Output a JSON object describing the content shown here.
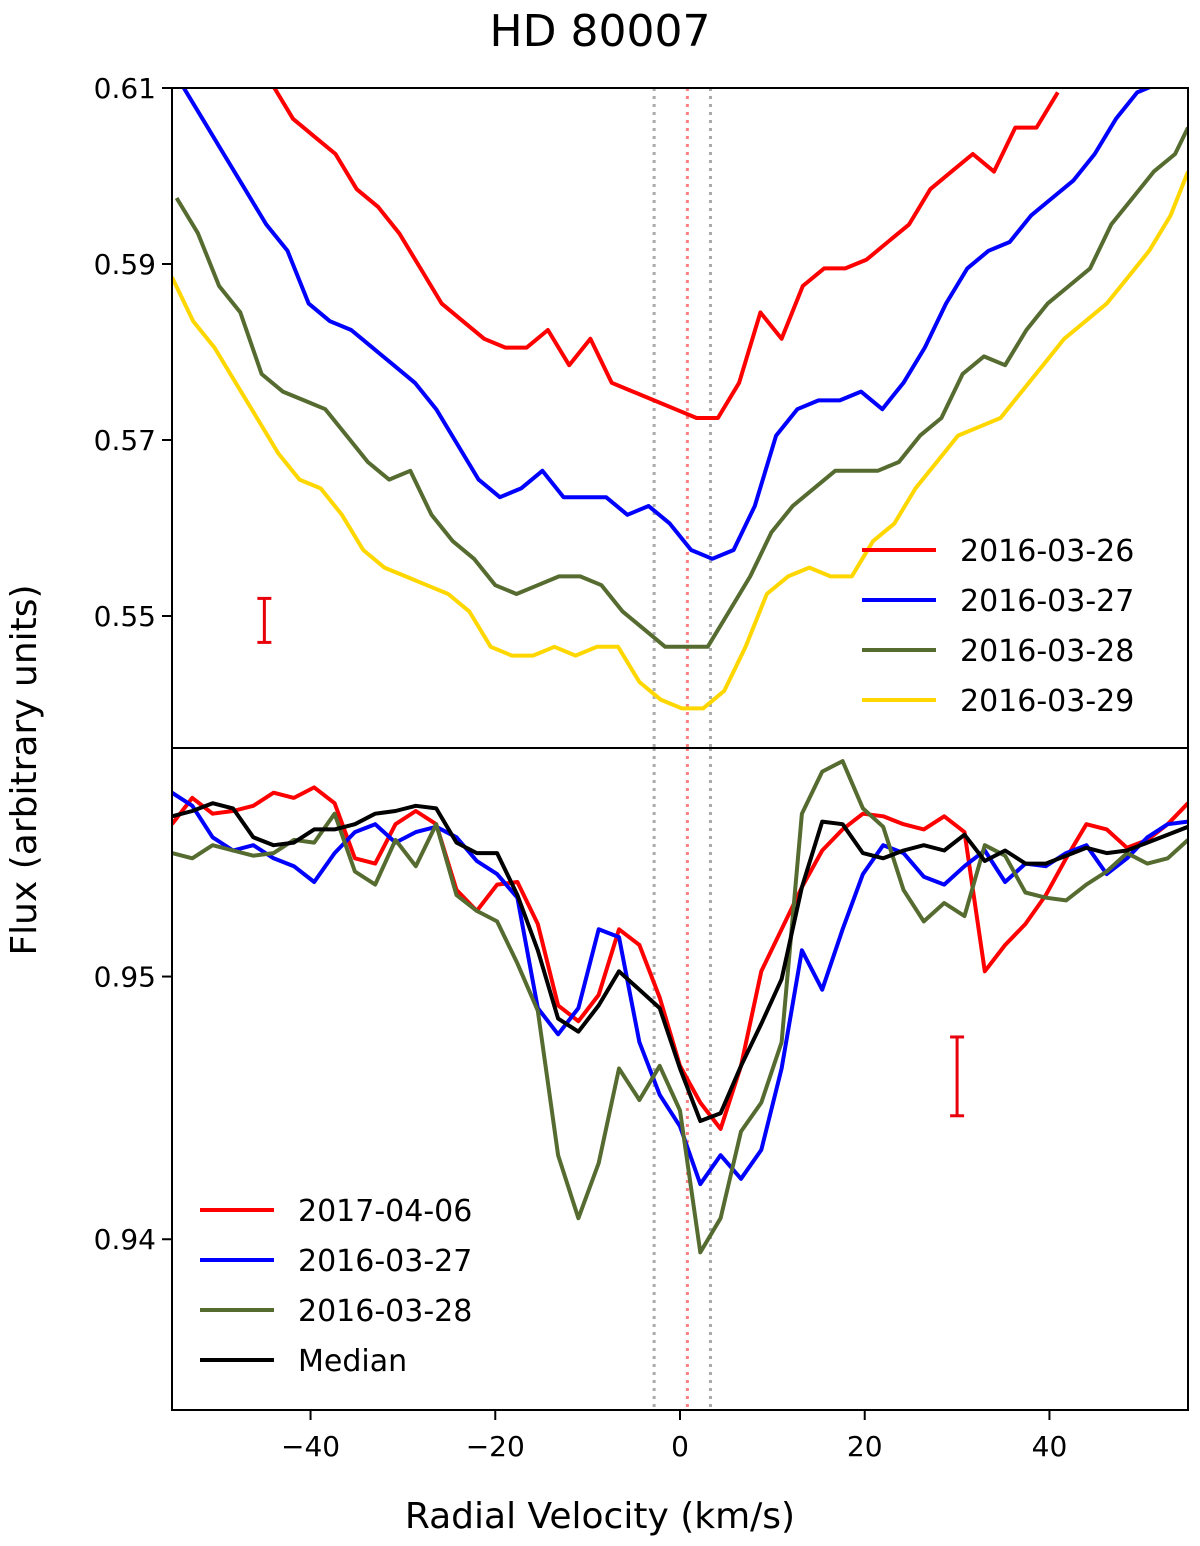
{
  "title": "HD 80007",
  "xlabel": "Radial Velocity (km/s)",
  "ylabel": "Flux (arbitrary units)",
  "chart_data": [
    {
      "type": "line",
      "panel": "top",
      "xlim": [
        -55,
        55
      ],
      "ylim": [
        0.535,
        0.61
      ],
      "yticks": [
        0.55,
        0.57,
        0.59,
        0.61
      ],
      "yticklabels": [
        "0.55",
        "0.57",
        "0.59",
        "0.61"
      ],
      "legend_position": "lower-right",
      "vlines": [
        {
          "x": -2.8,
          "color": "#aaaaaa"
        },
        {
          "x": 0.8,
          "color": "#ff8080"
        },
        {
          "x": 3.3,
          "color": "#aaaaaa"
        }
      ],
      "error_bar": {
        "x": -45,
        "y": 0.5495,
        "err": 0.0025,
        "color": "#e8000b"
      },
      "series": [
        {
          "name": "2016-03-26",
          "color": "#ff0000",
          "x": [
            -44.2,
            -41.9,
            -39.6,
            -37.3,
            -35.0,
            -32.7,
            -30.4,
            -28.1,
            -25.8,
            -23.5,
            -21.2,
            -18.9,
            -16.6,
            -14.3,
            -12.0,
            -9.7,
            -7.4,
            -5.1,
            -2.8,
            -0.5,
            1.8,
            4.1,
            6.4,
            8.7,
            11.0,
            13.3,
            15.6,
            17.9,
            20.2,
            22.5,
            24.8,
            27.1,
            29.4,
            31.7,
            34.0,
            36.3,
            38.6,
            40.9
          ],
          "values": [
            0.6105,
            0.6065,
            0.6045,
            0.6025,
            0.5985,
            0.5965,
            0.5935,
            0.5895,
            0.5855,
            0.5835,
            0.5815,
            0.5805,
            0.5805,
            0.5825,
            0.5785,
            0.5815,
            0.5765,
            0.5755,
            0.5745,
            0.5735,
            0.5725,
            0.5725,
            0.5765,
            0.5845,
            0.5815,
            0.5875,
            0.5895,
            0.5895,
            0.5905,
            0.5925,
            0.5945,
            0.5985,
            0.6005,
            0.6025,
            0.6005,
            0.6055,
            0.6055,
            0.6095
          ]
        },
        {
          "name": "2016-03-27",
          "color": "#0000ff",
          "x": [
            -54.0,
            -51.7,
            -49.4,
            -47.1,
            -44.8,
            -42.5,
            -40.2,
            -37.9,
            -35.6,
            -33.3,
            -31.0,
            -28.7,
            -26.4,
            -24.1,
            -21.8,
            -19.5,
            -17.2,
            -14.9,
            -12.6,
            -10.3,
            -8.0,
            -5.7,
            -3.4,
            -1.1,
            1.2,
            3.5,
            5.8,
            8.1,
            10.4,
            12.7,
            15.0,
            17.3,
            19.6,
            21.9,
            24.2,
            26.5,
            28.8,
            31.1,
            33.4,
            35.7,
            38.0,
            40.3,
            42.6,
            44.9,
            47.2,
            49.5,
            51.8
          ],
          "values": [
            0.6105,
            0.6065,
            0.6025,
            0.5985,
            0.5945,
            0.5915,
            0.5855,
            0.5835,
            0.5825,
            0.5805,
            0.5785,
            0.5765,
            0.5735,
            0.5695,
            0.5655,
            0.5635,
            0.5645,
            0.5665,
            0.5635,
            0.5635,
            0.5635,
            0.5615,
            0.5625,
            0.5605,
            0.5575,
            0.5565,
            0.5575,
            0.5625,
            0.5705,
            0.5735,
            0.5745,
            0.5745,
            0.5755,
            0.5735,
            0.5765,
            0.5805,
            0.5855,
            0.5895,
            0.5915,
            0.5925,
            0.5955,
            0.5975,
            0.5995,
            0.6025,
            0.6065,
            0.6095,
            0.6105
          ]
        },
        {
          "name": "2016-03-28",
          "color": "#556b2f",
          "x": [
            -54.5,
            -52.2,
            -49.9,
            -47.6,
            -45.3,
            -43.0,
            -40.7,
            -38.4,
            -36.1,
            -33.8,
            -31.5,
            -29.2,
            -26.9,
            -24.6,
            -22.3,
            -20.0,
            -17.7,
            -15.4,
            -13.1,
            -10.8,
            -8.5,
            -6.2,
            -3.9,
            -1.6,
            0.7,
            3.0,
            5.3,
            7.6,
            9.9,
            12.2,
            14.5,
            16.8,
            19.1,
            21.4,
            23.7,
            26.0,
            28.3,
            30.6,
            32.9,
            35.2,
            37.5,
            39.8,
            42.1,
            44.4,
            46.7,
            49.0,
            51.3,
            53.6,
            55.0
          ],
          "values": [
            0.5975,
            0.5935,
            0.5875,
            0.5845,
            0.5775,
            0.5755,
            0.5745,
            0.5735,
            0.5705,
            0.5675,
            0.5655,
            0.5665,
            0.5615,
            0.5585,
            0.5565,
            0.5535,
            0.5525,
            0.5535,
            0.5545,
            0.5545,
            0.5535,
            0.5505,
            0.5485,
            0.5465,
            0.5465,
            0.5465,
            0.5505,
            0.5545,
            0.5595,
            0.5625,
            0.5645,
            0.5665,
            0.5665,
            0.5665,
            0.5675,
            0.5705,
            0.5725,
            0.5775,
            0.5795,
            0.5785,
            0.5825,
            0.5855,
            0.5875,
            0.5895,
            0.5945,
            0.5975,
            0.6005,
            0.6025,
            0.6055
          ]
        },
        {
          "name": "2016-03-29",
          "color": "#ffd700",
          "x": [
            -55.0,
            -52.7,
            -50.4,
            -48.1,
            -45.8,
            -43.5,
            -41.2,
            -38.9,
            -36.6,
            -34.3,
            -32.0,
            -29.7,
            -27.4,
            -25.1,
            -22.8,
            -20.5,
            -18.2,
            -15.9,
            -13.6,
            -11.3,
            -9.0,
            -6.7,
            -4.4,
            -2.1,
            0.2,
            2.5,
            4.8,
            7.1,
            9.4,
            11.7,
            14.0,
            16.3,
            18.6,
            20.9,
            23.2,
            25.5,
            27.8,
            30.1,
            32.4,
            34.7,
            37.0,
            39.3,
            41.6,
            43.9,
            46.2,
            48.5,
            50.8,
            53.1,
            55.0
          ],
          "values": [
            0.5885,
            0.5835,
            0.5805,
            0.5765,
            0.5725,
            0.5685,
            0.5655,
            0.5645,
            0.5615,
            0.5575,
            0.5555,
            0.5545,
            0.5535,
            0.5525,
            0.5505,
            0.5465,
            0.5455,
            0.5455,
            0.5465,
            0.5455,
            0.5465,
            0.5465,
            0.5425,
            0.5405,
            0.5395,
            0.5395,
            0.5415,
            0.5465,
            0.5525,
            0.5545,
            0.5555,
            0.5545,
            0.5545,
            0.5585,
            0.5605,
            0.5645,
            0.5675,
            0.5705,
            0.5715,
            0.5725,
            0.5755,
            0.5785,
            0.5815,
            0.5835,
            0.5855,
            0.5885,
            0.5915,
            0.5955,
            0.6005
          ]
        }
      ]
    },
    {
      "type": "line",
      "panel": "bottom",
      "xlim": [
        -55,
        55
      ],
      "ylim": [
        0.9335,
        0.9587
      ],
      "yticks": [
        0.94,
        0.95
      ],
      "yticklabels": [
        "0.94",
        "0.95"
      ],
      "legend_position": "lower-left",
      "vlines": [
        {
          "x": -2.8,
          "color": "#aaaaaa"
        },
        {
          "x": 0.8,
          "color": "#ff8080"
        },
        {
          "x": 3.3,
          "color": "#aaaaaa"
        }
      ],
      "error_bar": {
        "x": 30,
        "y": 0.9462,
        "err": 0.0015,
        "color": "#e8000b"
      },
      "series": [
        {
          "name": "2017-04-06",
          "color": "#ff0000",
          "x": [
            -55.0,
            -52.8,
            -50.6,
            -48.4,
            -46.2,
            -44.0,
            -41.8,
            -39.6,
            -37.4,
            -35.2,
            -33.0,
            -30.8,
            -28.6,
            -26.4,
            -24.2,
            -22.0,
            -19.8,
            -17.6,
            -15.4,
            -13.2,
            -11.0,
            -8.8,
            -6.6,
            -4.4,
            -2.2,
            0.0,
            2.2,
            4.4,
            6.6,
            8.8,
            11.0,
            13.2,
            15.4,
            17.6,
            19.8,
            22.0,
            24.2,
            26.4,
            28.6,
            30.8,
            33.0,
            35.2,
            37.4,
            39.6,
            41.8,
            44.0,
            46.2,
            48.4,
            50.6,
            52.8,
            55.0
          ],
          "values": [
            0.9558,
            0.9568,
            0.9562,
            0.9563,
            0.9565,
            0.957,
            0.9568,
            0.9572,
            0.9566,
            0.9545,
            0.9543,
            0.9558,
            0.9563,
            0.9558,
            0.9533,
            0.9525,
            0.9535,
            0.9536,
            0.952,
            0.9489,
            0.9483,
            0.9493,
            0.9518,
            0.9512,
            0.9492,
            0.9466,
            0.9452,
            0.9442,
            0.9466,
            0.9502,
            0.9518,
            0.9534,
            0.9548,
            0.9556,
            0.9562,
            0.9561,
            0.9558,
            0.9556,
            0.9561,
            0.9555,
            0.9502,
            0.9512,
            0.952,
            0.9531,
            0.9545,
            0.9558,
            0.9556,
            0.9549,
            0.9552,
            0.9558,
            0.9566
          ]
        },
        {
          "name": "2016-03-27",
          "color": "#0000ff",
          "x": [
            -55.0,
            -52.8,
            -50.6,
            -48.4,
            -46.2,
            -44.0,
            -41.8,
            -39.6,
            -37.4,
            -35.2,
            -33.0,
            -30.8,
            -28.6,
            -26.4,
            -24.2,
            -22.0,
            -19.8,
            -17.6,
            -15.4,
            -13.2,
            -11.0,
            -8.8,
            -6.6,
            -4.4,
            -2.2,
            0.0,
            2.2,
            4.4,
            6.6,
            8.8,
            11.0,
            13.2,
            15.4,
            17.6,
            19.8,
            22.0,
            24.2,
            26.4,
            28.6,
            30.8,
            33.0,
            35.2,
            37.4,
            39.6,
            41.8,
            44.0,
            46.2,
            48.4,
            50.6,
            52.8,
            55.0
          ],
          "values": [
            0.957,
            0.9565,
            0.9553,
            0.9548,
            0.955,
            0.9545,
            0.9542,
            0.9536,
            0.9547,
            0.9555,
            0.9558,
            0.9551,
            0.9555,
            0.9557,
            0.9553,
            0.9544,
            0.9539,
            0.953,
            0.9488,
            0.9478,
            0.9488,
            0.9518,
            0.9515,
            0.9475,
            0.9455,
            0.9443,
            0.9421,
            0.9432,
            0.9423,
            0.9434,
            0.9465,
            0.951,
            0.9495,
            0.9518,
            0.9539,
            0.955,
            0.9547,
            0.9538,
            0.9535,
            0.9542,
            0.9548,
            0.9536,
            0.9543,
            0.9542,
            0.9547,
            0.955,
            0.9539,
            0.9545,
            0.9553,
            0.9558,
            0.9559
          ]
        },
        {
          "name": "2016-03-28",
          "color": "#556b2f",
          "x": [
            -55.0,
            -52.8,
            -50.6,
            -48.4,
            -46.2,
            -44.0,
            -41.8,
            -39.6,
            -37.4,
            -35.2,
            -33.0,
            -30.8,
            -28.6,
            -26.4,
            -24.2,
            -22.0,
            -19.8,
            -17.6,
            -15.4,
            -13.2,
            -11.0,
            -8.8,
            -6.6,
            -4.4,
            -2.2,
            0.0,
            2.2,
            4.4,
            6.6,
            8.8,
            11.0,
            13.2,
            15.4,
            17.6,
            19.8,
            22.0,
            24.2,
            26.4,
            28.6,
            30.8,
            33.0,
            35.2,
            37.4,
            39.6,
            41.8,
            44.0,
            46.2,
            48.4,
            50.6,
            52.8,
            55.0
          ],
          "values": [
            0.9547,
            0.9545,
            0.955,
            0.9548,
            0.9546,
            0.9547,
            0.9552,
            0.9551,
            0.9562,
            0.954,
            0.9535,
            0.9552,
            0.9542,
            0.9558,
            0.9531,
            0.9525,
            0.9521,
            0.9505,
            0.9487,
            0.9432,
            0.9408,
            0.9429,
            0.9465,
            0.9453,
            0.9466,
            0.9449,
            0.9395,
            0.9408,
            0.9441,
            0.9452,
            0.9475,
            0.9562,
            0.9578,
            0.9582,
            0.9564,
            0.9557,
            0.9533,
            0.9521,
            0.9528,
            0.9523,
            0.955,
            0.9546,
            0.9532,
            0.953,
            0.9529,
            0.9535,
            0.954,
            0.9547,
            0.9543,
            0.9545,
            0.9552
          ]
        },
        {
          "name": "Median",
          "color": "#000000",
          "x": [
            -55.0,
            -52.8,
            -50.6,
            -48.4,
            -46.2,
            -44.0,
            -41.8,
            -39.6,
            -37.4,
            -35.2,
            -33.0,
            -30.8,
            -28.6,
            -26.4,
            -24.2,
            -22.0,
            -19.8,
            -17.6,
            -15.4,
            -13.2,
            -11.0,
            -8.8,
            -6.6,
            -4.4,
            -2.2,
            0.0,
            2.2,
            4.4,
            6.6,
            8.8,
            11.0,
            13.2,
            15.4,
            17.6,
            19.8,
            22.0,
            24.2,
            26.4,
            28.6,
            30.8,
            33.0,
            35.2,
            37.4,
            39.6,
            41.8,
            44.0,
            46.2,
            48.4,
            50.6,
            52.8,
            55.0
          ],
          "values": [
            0.9561,
            0.9563,
            0.9566,
            0.9564,
            0.9553,
            0.955,
            0.9551,
            0.9556,
            0.9556,
            0.9558,
            0.9562,
            0.9563,
            0.9565,
            0.9564,
            0.9551,
            0.9547,
            0.9547,
            0.9531,
            0.951,
            0.9484,
            0.9479,
            0.9489,
            0.9502,
            0.9495,
            0.9488,
            0.9465,
            0.9445,
            0.9448,
            0.9466,
            0.9482,
            0.9499,
            0.9534,
            0.9559,
            0.9558,
            0.9547,
            0.9545,
            0.9548,
            0.955,
            0.9548,
            0.9554,
            0.9544,
            0.9548,
            0.9543,
            0.9543,
            0.9546,
            0.9549,
            0.9547,
            0.9548,
            0.9551,
            0.9554,
            0.9557
          ]
        }
      ]
    }
  ]
}
